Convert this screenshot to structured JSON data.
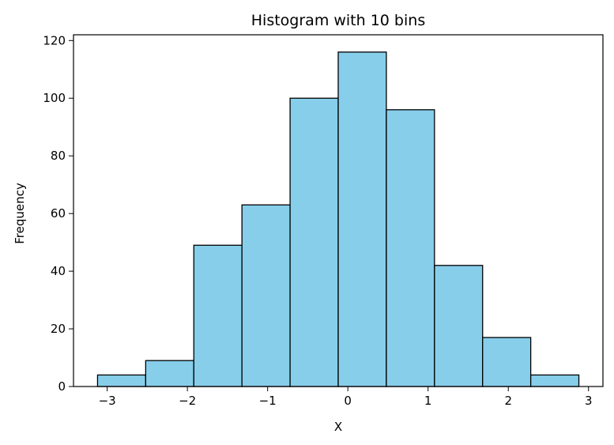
{
  "chart_data": {
    "type": "bar",
    "title": "Histogram with 10 bins",
    "xlabel": "X",
    "ylabel": "Frequency",
    "bin_edges": [
      -3.12,
      -2.52,
      -1.92,
      -1.32,
      -0.72,
      -0.12,
      0.48,
      1.08,
      1.68,
      2.28,
      2.88
    ],
    "values": [
      4,
      9,
      49,
      63,
      100,
      116,
      96,
      42,
      17,
      4
    ],
    "xlim": [
      -3.42,
      3.18
    ],
    "ylim": [
      0,
      122
    ],
    "xticks": [
      -3,
      -2,
      -1,
      0,
      1,
      2,
      3
    ],
    "xtick_labels": [
      "−3",
      "−2",
      "−1",
      "0",
      "1",
      "2",
      "3"
    ],
    "yticks": [
      0,
      20,
      40,
      60,
      80,
      100,
      120
    ],
    "ytick_labels": [
      "0",
      "20",
      "40",
      "60",
      "80",
      "100",
      "120"
    ],
    "bar_color": "#87ceeb",
    "edge_color": "#000000",
    "grid": false
  }
}
